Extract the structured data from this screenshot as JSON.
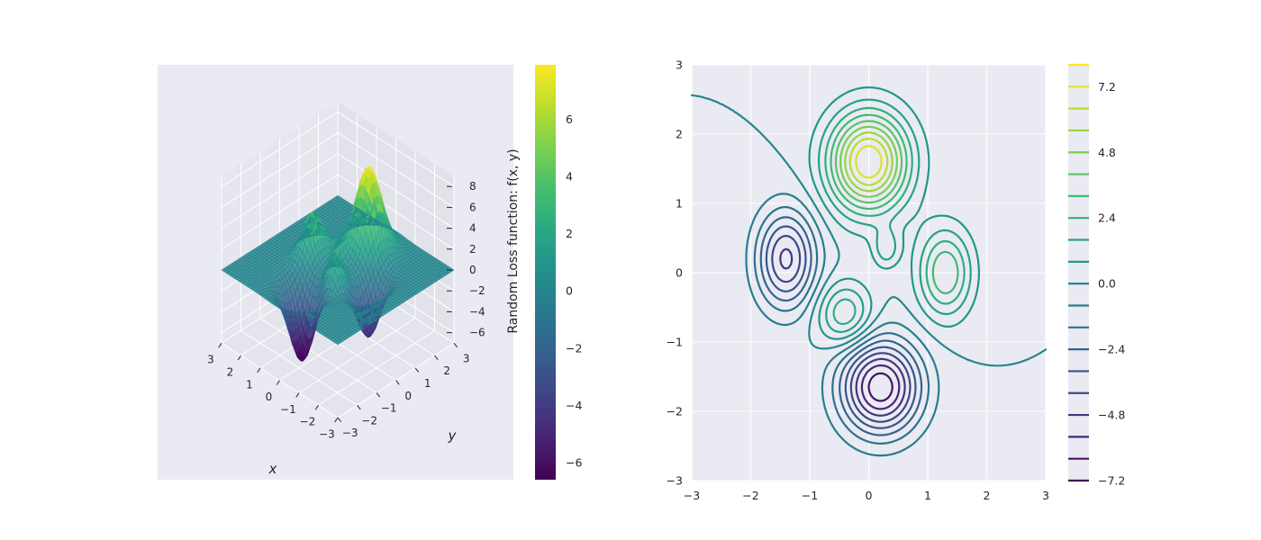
{
  "chart_data": [
    {
      "type": "surface3d",
      "xlabel": "x",
      "ylabel": "y",
      "zlabel": "Random Loss function: f(x, y)",
      "x_ticks": [
        "−3",
        "−2",
        "−1",
        "0",
        "1",
        "2",
        "3"
      ],
      "y_ticks": [
        "−3",
        "−2",
        "−1",
        "0",
        "1",
        "2",
        "3"
      ],
      "z_ticks": [
        "−6",
        "−4",
        "−2",
        "0",
        "2",
        "4",
        "6",
        "8"
      ],
      "xlim": [
        -3,
        3
      ],
      "ylim": [
        -3,
        3
      ],
      "zlim": [
        -7,
        9
      ],
      "colormap": "viridis",
      "colorbar_ticks": [
        "−6",
        "−4",
        "−2",
        "0",
        "2",
        "4",
        "6"
      ],
      "colorbar_range": [
        -6.6,
        7.9
      ],
      "peak": {
        "x": 0,
        "y": 1.6,
        "z": 7.9
      },
      "trough": {
        "x": 0.2,
        "y": -1.65,
        "z": -6.6
      },
      "grid": true
    },
    {
      "type": "contour",
      "xlim": [
        -3,
        3
      ],
      "ylim": [
        -3,
        3
      ],
      "x_ticks": [
        "−3",
        "−2",
        "−1",
        "0",
        "1",
        "2",
        "3"
      ],
      "y_ticks": [
        "−3",
        "−2",
        "−1",
        "0",
        "1",
        "2",
        "3"
      ],
      "colormap": "viridis",
      "levels": [
        -7.2,
        -6.4,
        -5.6,
        -4.8,
        -4.0,
        -3.2,
        -2.4,
        -1.6,
        -0.8,
        0.0,
        0.8,
        1.6,
        2.4,
        3.2,
        4.0,
        4.8,
        5.6,
        6.4,
        7.2,
        8.0
      ],
      "colorbar_ticks": [
        "−7.2",
        "−4.8",
        "−2.4",
        "0.0",
        "2.4",
        "4.8",
        "7.2"
      ],
      "grid": true
    }
  ],
  "colors": {
    "axes_bg": "#eaeaf2",
    "grid": "#ffffff",
    "tick_text": "#262626"
  }
}
